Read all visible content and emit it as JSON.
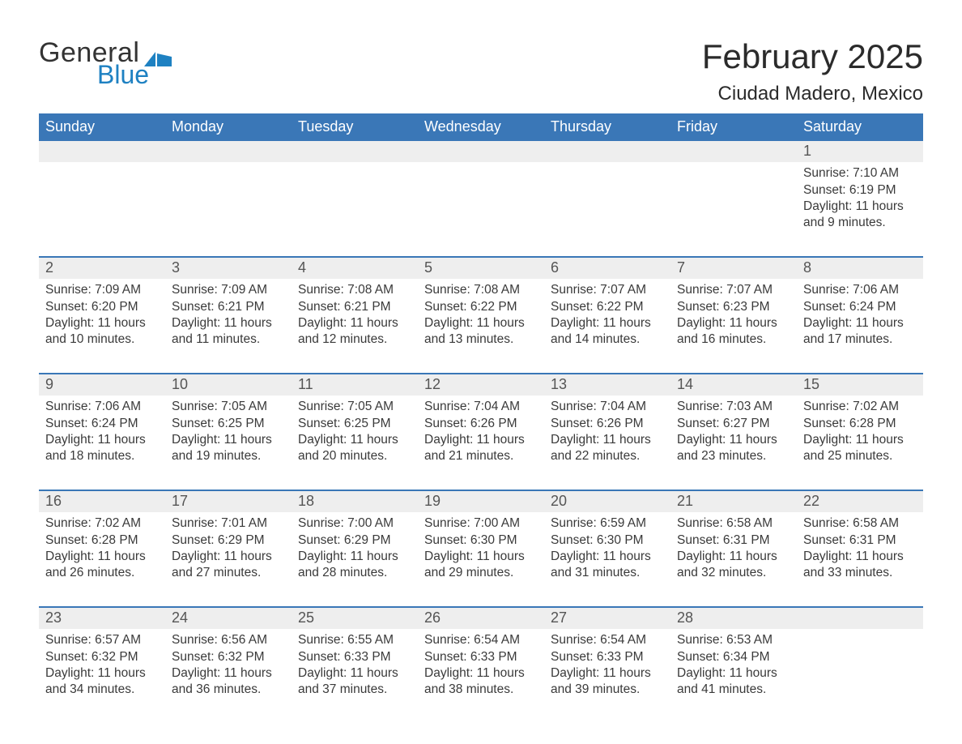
{
  "styling": {
    "accent_color": "#3a77b7",
    "logo_blue": "#1e81c2",
    "header_row_bg": "#eeeeee",
    "page_bg": "#ffffff",
    "text_color": "#222222",
    "muted_text": "#3a3a3a",
    "title_fontsize_pt": 32,
    "location_fontsize_pt": 18,
    "dow_fontsize_pt": 14,
    "cell_fontsize_pt": 12
  },
  "brand": {
    "line1": "General",
    "line2": "Blue",
    "mark_color": "#1e81c2"
  },
  "header": {
    "month_title": "February 2025",
    "location": "Ciudad Madero, Mexico"
  },
  "days_of_week": [
    "Sunday",
    "Monday",
    "Tuesday",
    "Wednesday",
    "Thursday",
    "Friday",
    "Saturday"
  ],
  "weeks": [
    [
      {
        "n": "",
        "lines": [
          "",
          "",
          "",
          ""
        ]
      },
      {
        "n": "",
        "lines": [
          "",
          "",
          "",
          ""
        ]
      },
      {
        "n": "",
        "lines": [
          "",
          "",
          "",
          ""
        ]
      },
      {
        "n": "",
        "lines": [
          "",
          "",
          "",
          ""
        ]
      },
      {
        "n": "",
        "lines": [
          "",
          "",
          "",
          ""
        ]
      },
      {
        "n": "",
        "lines": [
          "",
          "",
          "",
          ""
        ]
      },
      {
        "n": "1",
        "lines": [
          "Sunrise: 7:10 AM",
          "Sunset: 6:19 PM",
          "Daylight: 11 hours",
          "and 9 minutes."
        ]
      }
    ],
    [
      {
        "n": "2",
        "lines": [
          "Sunrise: 7:09 AM",
          "Sunset: 6:20 PM",
          "Daylight: 11 hours",
          "and 10 minutes."
        ]
      },
      {
        "n": "3",
        "lines": [
          "Sunrise: 7:09 AM",
          "Sunset: 6:21 PM",
          "Daylight: 11 hours",
          "and 11 minutes."
        ]
      },
      {
        "n": "4",
        "lines": [
          "Sunrise: 7:08 AM",
          "Sunset: 6:21 PM",
          "Daylight: 11 hours",
          "and 12 minutes."
        ]
      },
      {
        "n": "5",
        "lines": [
          "Sunrise: 7:08 AM",
          "Sunset: 6:22 PM",
          "Daylight: 11 hours",
          "and 13 minutes."
        ]
      },
      {
        "n": "6",
        "lines": [
          "Sunrise: 7:07 AM",
          "Sunset: 6:22 PM",
          "Daylight: 11 hours",
          "and 14 minutes."
        ]
      },
      {
        "n": "7",
        "lines": [
          "Sunrise: 7:07 AM",
          "Sunset: 6:23 PM",
          "Daylight: 11 hours",
          "and 16 minutes."
        ]
      },
      {
        "n": "8",
        "lines": [
          "Sunrise: 7:06 AM",
          "Sunset: 6:24 PM",
          "Daylight: 11 hours",
          "and 17 minutes."
        ]
      }
    ],
    [
      {
        "n": "9",
        "lines": [
          "Sunrise: 7:06 AM",
          "Sunset: 6:24 PM",
          "Daylight: 11 hours",
          "and 18 minutes."
        ]
      },
      {
        "n": "10",
        "lines": [
          "Sunrise: 7:05 AM",
          "Sunset: 6:25 PM",
          "Daylight: 11 hours",
          "and 19 minutes."
        ]
      },
      {
        "n": "11",
        "lines": [
          "Sunrise: 7:05 AM",
          "Sunset: 6:25 PM",
          "Daylight: 11 hours",
          "and 20 minutes."
        ]
      },
      {
        "n": "12",
        "lines": [
          "Sunrise: 7:04 AM",
          "Sunset: 6:26 PM",
          "Daylight: 11 hours",
          "and 21 minutes."
        ]
      },
      {
        "n": "13",
        "lines": [
          "Sunrise: 7:04 AM",
          "Sunset: 6:26 PM",
          "Daylight: 11 hours",
          "and 22 minutes."
        ]
      },
      {
        "n": "14",
        "lines": [
          "Sunrise: 7:03 AM",
          "Sunset: 6:27 PM",
          "Daylight: 11 hours",
          "and 23 minutes."
        ]
      },
      {
        "n": "15",
        "lines": [
          "Sunrise: 7:02 AM",
          "Sunset: 6:28 PM",
          "Daylight: 11 hours",
          "and 25 minutes."
        ]
      }
    ],
    [
      {
        "n": "16",
        "lines": [
          "Sunrise: 7:02 AM",
          "Sunset: 6:28 PM",
          "Daylight: 11 hours",
          "and 26 minutes."
        ]
      },
      {
        "n": "17",
        "lines": [
          "Sunrise: 7:01 AM",
          "Sunset: 6:29 PM",
          "Daylight: 11 hours",
          "and 27 minutes."
        ]
      },
      {
        "n": "18",
        "lines": [
          "Sunrise: 7:00 AM",
          "Sunset: 6:29 PM",
          "Daylight: 11 hours",
          "and 28 minutes."
        ]
      },
      {
        "n": "19",
        "lines": [
          "Sunrise: 7:00 AM",
          "Sunset: 6:30 PM",
          "Daylight: 11 hours",
          "and 29 minutes."
        ]
      },
      {
        "n": "20",
        "lines": [
          "Sunrise: 6:59 AM",
          "Sunset: 6:30 PM",
          "Daylight: 11 hours",
          "and 31 minutes."
        ]
      },
      {
        "n": "21",
        "lines": [
          "Sunrise: 6:58 AM",
          "Sunset: 6:31 PM",
          "Daylight: 11 hours",
          "and 32 minutes."
        ]
      },
      {
        "n": "22",
        "lines": [
          "Sunrise: 6:58 AM",
          "Sunset: 6:31 PM",
          "Daylight: 11 hours",
          "and 33 minutes."
        ]
      }
    ],
    [
      {
        "n": "23",
        "lines": [
          "Sunrise: 6:57 AM",
          "Sunset: 6:32 PM",
          "Daylight: 11 hours",
          "and 34 minutes."
        ]
      },
      {
        "n": "24",
        "lines": [
          "Sunrise: 6:56 AM",
          "Sunset: 6:32 PM",
          "Daylight: 11 hours",
          "and 36 minutes."
        ]
      },
      {
        "n": "25",
        "lines": [
          "Sunrise: 6:55 AM",
          "Sunset: 6:33 PM",
          "Daylight: 11 hours",
          "and 37 minutes."
        ]
      },
      {
        "n": "26",
        "lines": [
          "Sunrise: 6:54 AM",
          "Sunset: 6:33 PM",
          "Daylight: 11 hours",
          "and 38 minutes."
        ]
      },
      {
        "n": "27",
        "lines": [
          "Sunrise: 6:54 AM",
          "Sunset: 6:33 PM",
          "Daylight: 11 hours",
          "and 39 minutes."
        ]
      },
      {
        "n": "28",
        "lines": [
          "Sunrise: 6:53 AM",
          "Sunset: 6:34 PM",
          "Daylight: 11 hours",
          "and 41 minutes."
        ]
      },
      {
        "n": "",
        "lines": [
          "",
          "",
          "",
          ""
        ]
      }
    ]
  ]
}
